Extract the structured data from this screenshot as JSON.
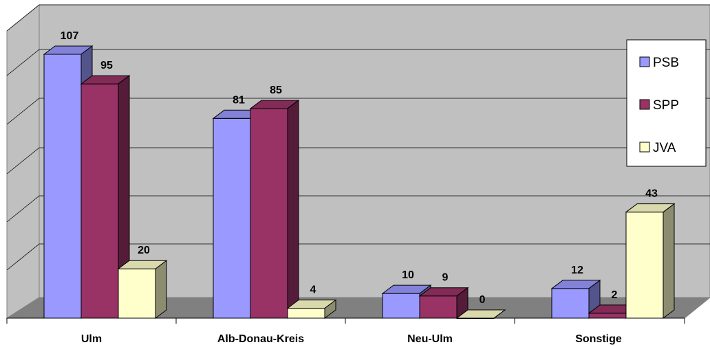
{
  "chart_data": {
    "type": "bar",
    "categories": [
      "Ulm",
      "Alb-Donau-Kreis",
      "Neu-Ulm",
      "Sonstige"
    ],
    "series": [
      {
        "name": "PSB",
        "values": [
          107,
          81,
          10,
          12
        ],
        "color": "#9999ff"
      },
      {
        "name": "SPP",
        "values": [
          95,
          85,
          9,
          2
        ],
        "color": "#993366"
      },
      {
        "name": "JVA",
        "values": [
          20,
          4,
          0,
          43
        ],
        "color": "#ffffcc"
      }
    ],
    "ylim": [
      0,
      120
    ],
    "grid": true,
    "legend": "right",
    "style": "3d-clustered-column"
  }
}
